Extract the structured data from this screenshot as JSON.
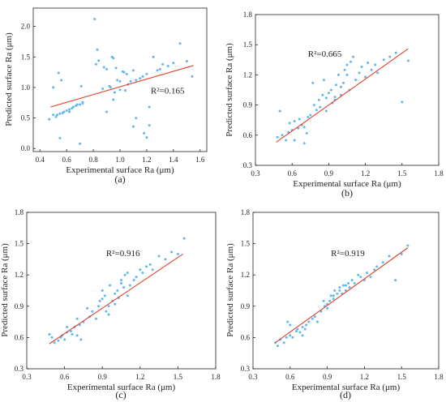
{
  "figure": {
    "background": "#ffffff"
  },
  "colors": {
    "point": "#62b8ec",
    "fit_line": "#e8402a",
    "axis": "#222222"
  },
  "chart_data": [
    {
      "panel": "(a)",
      "type": "scatter",
      "xlabel": "Experimental surface Ra (μm)",
      "ylabel": "Predicted surface Ra (μm)",
      "xlim": [
        0.35,
        1.65
      ],
      "ylim": [
        -0.05,
        2.3
      ],
      "xticks": [
        0.4,
        0.6,
        0.8,
        1.0,
        1.2,
        1.4,
        1.6
      ],
      "xtick_labels": [
        "0.4",
        "0.6",
        "0.8",
        "1.0",
        "1.2",
        "1.4",
        "1.6"
      ],
      "yticks": [
        0.0,
        0.5,
        1.0,
        1.5,
        2.0
      ],
      "ytick_labels": [
        "0.0",
        "0.5",
        "1.0",
        "1.5",
        "2.0"
      ],
      "annotation": "R²=0.165",
      "annotation_pos": [
        1.23,
        0.9
      ],
      "fit_line": {
        "x": [
          0.48,
          1.55
        ],
        "y": [
          0.68,
          1.36
        ]
      },
      "x": [
        0.47,
        0.5,
        0.52,
        0.53,
        0.55,
        0.57,
        0.58,
        0.6,
        0.62,
        0.64,
        0.65,
        0.67,
        0.68,
        0.7,
        0.72,
        0.71,
        0.72,
        0.5,
        0.54,
        0.62,
        0.55,
        0.56,
        0.81,
        0.83,
        0.84,
        0.82,
        0.9,
        0.88,
        0.92,
        0.93,
        0.94,
        0.95,
        0.97,
        0.98,
        1.0,
        1.02,
        1.04,
        1.06,
        1.08,
        1.1,
        1.12,
        1.15,
        1.17,
        1.2,
        1.22,
        1.25,
        1.28,
        1.3,
        1.32,
        1.36,
        1.4,
        1.45,
        1.5,
        1.54,
        0.87,
        0.9,
        0.96,
        1.0,
        1.03,
        1.05,
        1.1,
        1.12,
        1.18,
        1.2,
        1.22,
        0.95,
        0.7
      ],
      "y": [
        0.48,
        1.0,
        0.52,
        0.55,
        0.57,
        0.58,
        0.6,
        0.62,
        0.64,
        0.66,
        0.68,
        0.7,
        0.72,
        0.72,
        0.74,
        1.02,
        0.76,
        0.55,
        1.24,
        0.6,
        0.17,
        1.12,
        2.12,
        1.62,
        1.44,
        1.38,
        1.3,
        1.33,
        1.02,
        1.0,
        1.5,
        1.48,
        1.32,
        1.12,
        1.1,
        1.26,
        0.95,
        1.05,
        1.1,
        1.28,
        1.12,
        1.15,
        1.18,
        1.22,
        0.68,
        1.5,
        1.28,
        1.3,
        1.38,
        1.35,
        1.4,
        1.72,
        1.43,
        1.18,
        0.98,
        0.6,
        0.92,
        0.96,
        1.25,
        1.22,
        0.36,
        0.5,
        0.25,
        0.18,
        0.38,
        0.8,
        0.08
      ]
    },
    {
      "panel": "(b)",
      "type": "scatter",
      "xlabel": "Experimental surface Ra (μm)",
      "ylabel": "Predicted surface Ra (μm)",
      "xlim": [
        0.3,
        1.8
      ],
      "ylim": [
        0.3,
        1.8
      ],
      "xticks": [
        0.3,
        0.6,
        0.9,
        1.2,
        1.5,
        1.8
      ],
      "xtick_labels": [
        "0.3",
        "0.6",
        "0.9",
        "1.2",
        "1.5",
        "1.8"
      ],
      "yticks": [
        0.3,
        0.6,
        0.9,
        1.2,
        1.5,
        1.8
      ],
      "ytick_labels": [
        "0.3",
        "0.6",
        "0.9",
        "1.2",
        "1.5",
        "1.8"
      ],
      "annotation": "R²=0.665",
      "annotation_pos": [
        0.73,
        1.38
      ],
      "fit_line": {
        "x": [
          0.47,
          1.55
        ],
        "y": [
          0.53,
          1.46
        ]
      },
      "x": [
        0.48,
        0.5,
        0.52,
        0.55,
        0.57,
        0.58,
        0.6,
        0.62,
        0.65,
        0.66,
        0.68,
        0.7,
        0.72,
        0.73,
        0.75,
        0.77,
        0.8,
        0.82,
        0.83,
        0.85,
        0.86,
        0.88,
        0.9,
        0.92,
        0.93,
        0.95,
        0.96,
        0.98,
        1.0,
        1.02,
        1.03,
        1.05,
        1.07,
        1.08,
        1.1,
        1.12,
        1.15,
        1.17,
        1.2,
        1.22,
        1.25,
        1.28,
        1.3,
        1.35,
        1.4,
        1.45,
        1.5,
        1.55,
        0.88,
        0.95,
        1.0,
        1.05,
        0.7,
        0.62,
        0.78
      ],
      "y": [
        0.58,
        0.84,
        0.6,
        0.55,
        0.63,
        0.72,
        0.65,
        0.74,
        0.67,
        0.76,
        0.7,
        0.52,
        0.62,
        0.78,
        0.8,
        1.12,
        0.85,
        0.95,
        0.88,
        1.0,
        1.15,
        0.97,
        1.02,
        1.05,
        0.92,
        0.95,
        1.1,
        1.2,
        1.0,
        1.12,
        1.25,
        1.2,
        1.05,
        1.33,
        1.38,
        1.15,
        1.22,
        1.28,
        1.18,
        1.32,
        1.25,
        1.3,
        1.22,
        1.35,
        1.38,
        1.42,
        0.93,
        1.34,
        0.84,
        0.98,
        1.08,
        1.3,
        0.68,
        0.55,
        0.9
      ]
    },
    {
      "panel": "(c)",
      "type": "scatter",
      "xlabel": "Experimental surface Ra (μm)",
      "ylabel": "Predicted surface Ra (μm)",
      "xlim": [
        0.3,
        1.8
      ],
      "ylim": [
        0.3,
        1.8
      ],
      "xticks": [
        0.3,
        0.6,
        0.9,
        1.2,
        1.5,
        1.8
      ],
      "xtick_labels": [
        "0.3",
        "0.6",
        "0.9",
        "1.2",
        "1.5",
        "1.8"
      ],
      "yticks": [
        0.3,
        0.6,
        0.9,
        1.2,
        1.5,
        1.8
      ],
      "ytick_labels": [
        "0.3",
        "0.6",
        "0.9",
        "1.2",
        "1.5",
        "1.8"
      ],
      "annotation": "R²=0.916",
      "annotation_pos": [
        0.93,
        1.38
      ],
      "fit_line": {
        "x": [
          0.48,
          1.54
        ],
        "y": [
          0.54,
          1.4
        ]
      },
      "x": [
        0.48,
        0.5,
        0.52,
        0.55,
        0.57,
        0.58,
        0.6,
        0.62,
        0.65,
        0.66,
        0.68,
        0.7,
        0.72,
        0.73,
        0.75,
        0.78,
        0.8,
        0.82,
        0.85,
        0.87,
        0.88,
        0.9,
        0.92,
        0.93,
        0.95,
        0.96,
        0.98,
        1.0,
        1.02,
        1.03,
        1.05,
        1.07,
        1.08,
        1.1,
        1.12,
        1.15,
        1.17,
        1.2,
        1.22,
        1.25,
        1.28,
        1.3,
        1.35,
        1.4,
        1.45,
        1.5,
        1.55,
        0.9,
        0.95,
        1.0,
        1.05,
        1.1,
        0.62,
        0.7
      ],
      "y": [
        0.63,
        0.6,
        0.55,
        0.57,
        0.6,
        0.62,
        0.58,
        0.65,
        0.66,
        0.63,
        0.7,
        0.62,
        0.72,
        0.58,
        0.75,
        0.88,
        0.8,
        0.85,
        0.78,
        0.9,
        0.95,
        0.97,
        1.0,
        0.85,
        0.9,
        1.1,
        0.95,
        1.02,
        1.05,
        0.98,
        1.12,
        1.08,
        1.2,
        1.22,
        1.1,
        1.15,
        1.18,
        1.25,
        1.22,
        1.28,
        1.3,
        1.25,
        1.38,
        1.35,
        1.42,
        1.4,
        1.55,
        1.05,
        0.82,
        0.92,
        1.15,
        1.0,
        0.7,
        0.78
      ]
    },
    {
      "panel": "(d)",
      "type": "scatter",
      "xlabel": "Experimental surface Ra (μm)",
      "ylabel": "Predicted surface Ra (μm)",
      "xlim": [
        0.3,
        1.8
      ],
      "ylim": [
        0.3,
        1.8
      ],
      "xticks": [
        0.3,
        0.6,
        0.9,
        1.2,
        1.5,
        1.8
      ],
      "xtick_labels": [
        "0.3",
        "0.6",
        "0.9",
        "1.2",
        "1.5",
        "1.8"
      ],
      "yticks": [
        0.3,
        0.6,
        0.9,
        1.2,
        1.5,
        1.8
      ],
      "ytick_labels": [
        "0.3",
        "0.6",
        "0.9",
        "1.2",
        "1.5",
        "1.8"
      ],
      "annotation": "R²=0.919",
      "annotation_pos": [
        0.93,
        1.38
      ],
      "fit_line": {
        "x": [
          0.48,
          1.55
        ],
        "y": [
          0.55,
          1.46
        ]
      },
      "x": [
        0.48,
        0.5,
        0.52,
        0.55,
        0.57,
        0.58,
        0.6,
        0.62,
        0.65,
        0.66,
        0.68,
        0.7,
        0.72,
        0.73,
        0.75,
        0.78,
        0.8,
        0.82,
        0.85,
        0.87,
        0.88,
        0.9,
        0.92,
        0.93,
        0.95,
        0.96,
        0.98,
        1.0,
        1.02,
        1.03,
        1.05,
        1.07,
        1.08,
        1.1,
        1.12,
        1.15,
        1.17,
        1.2,
        1.22,
        1.25,
        1.28,
        1.3,
        1.35,
        1.4,
        1.45,
        1.5,
        1.55,
        0.9,
        0.95,
        1.0,
        1.05,
        0.6,
        0.7
      ],
      "y": [
        0.55,
        0.52,
        0.58,
        0.55,
        0.6,
        0.75,
        0.62,
        0.6,
        0.66,
        0.68,
        0.65,
        0.7,
        0.68,
        0.72,
        0.75,
        0.78,
        0.8,
        0.75,
        0.85,
        0.95,
        0.9,
        0.92,
        0.95,
        1.0,
        0.97,
        1.05,
        1.02,
        1.08,
        1.02,
        1.1,
        1.05,
        1.12,
        1.08,
        1.15,
        1.12,
        1.2,
        1.18,
        1.15,
        1.22,
        1.18,
        1.25,
        1.28,
        1.32,
        1.38,
        1.15,
        1.4,
        1.48,
        0.88,
        1.0,
        1.05,
        1.1,
        0.72,
        0.62
      ]
    }
  ]
}
